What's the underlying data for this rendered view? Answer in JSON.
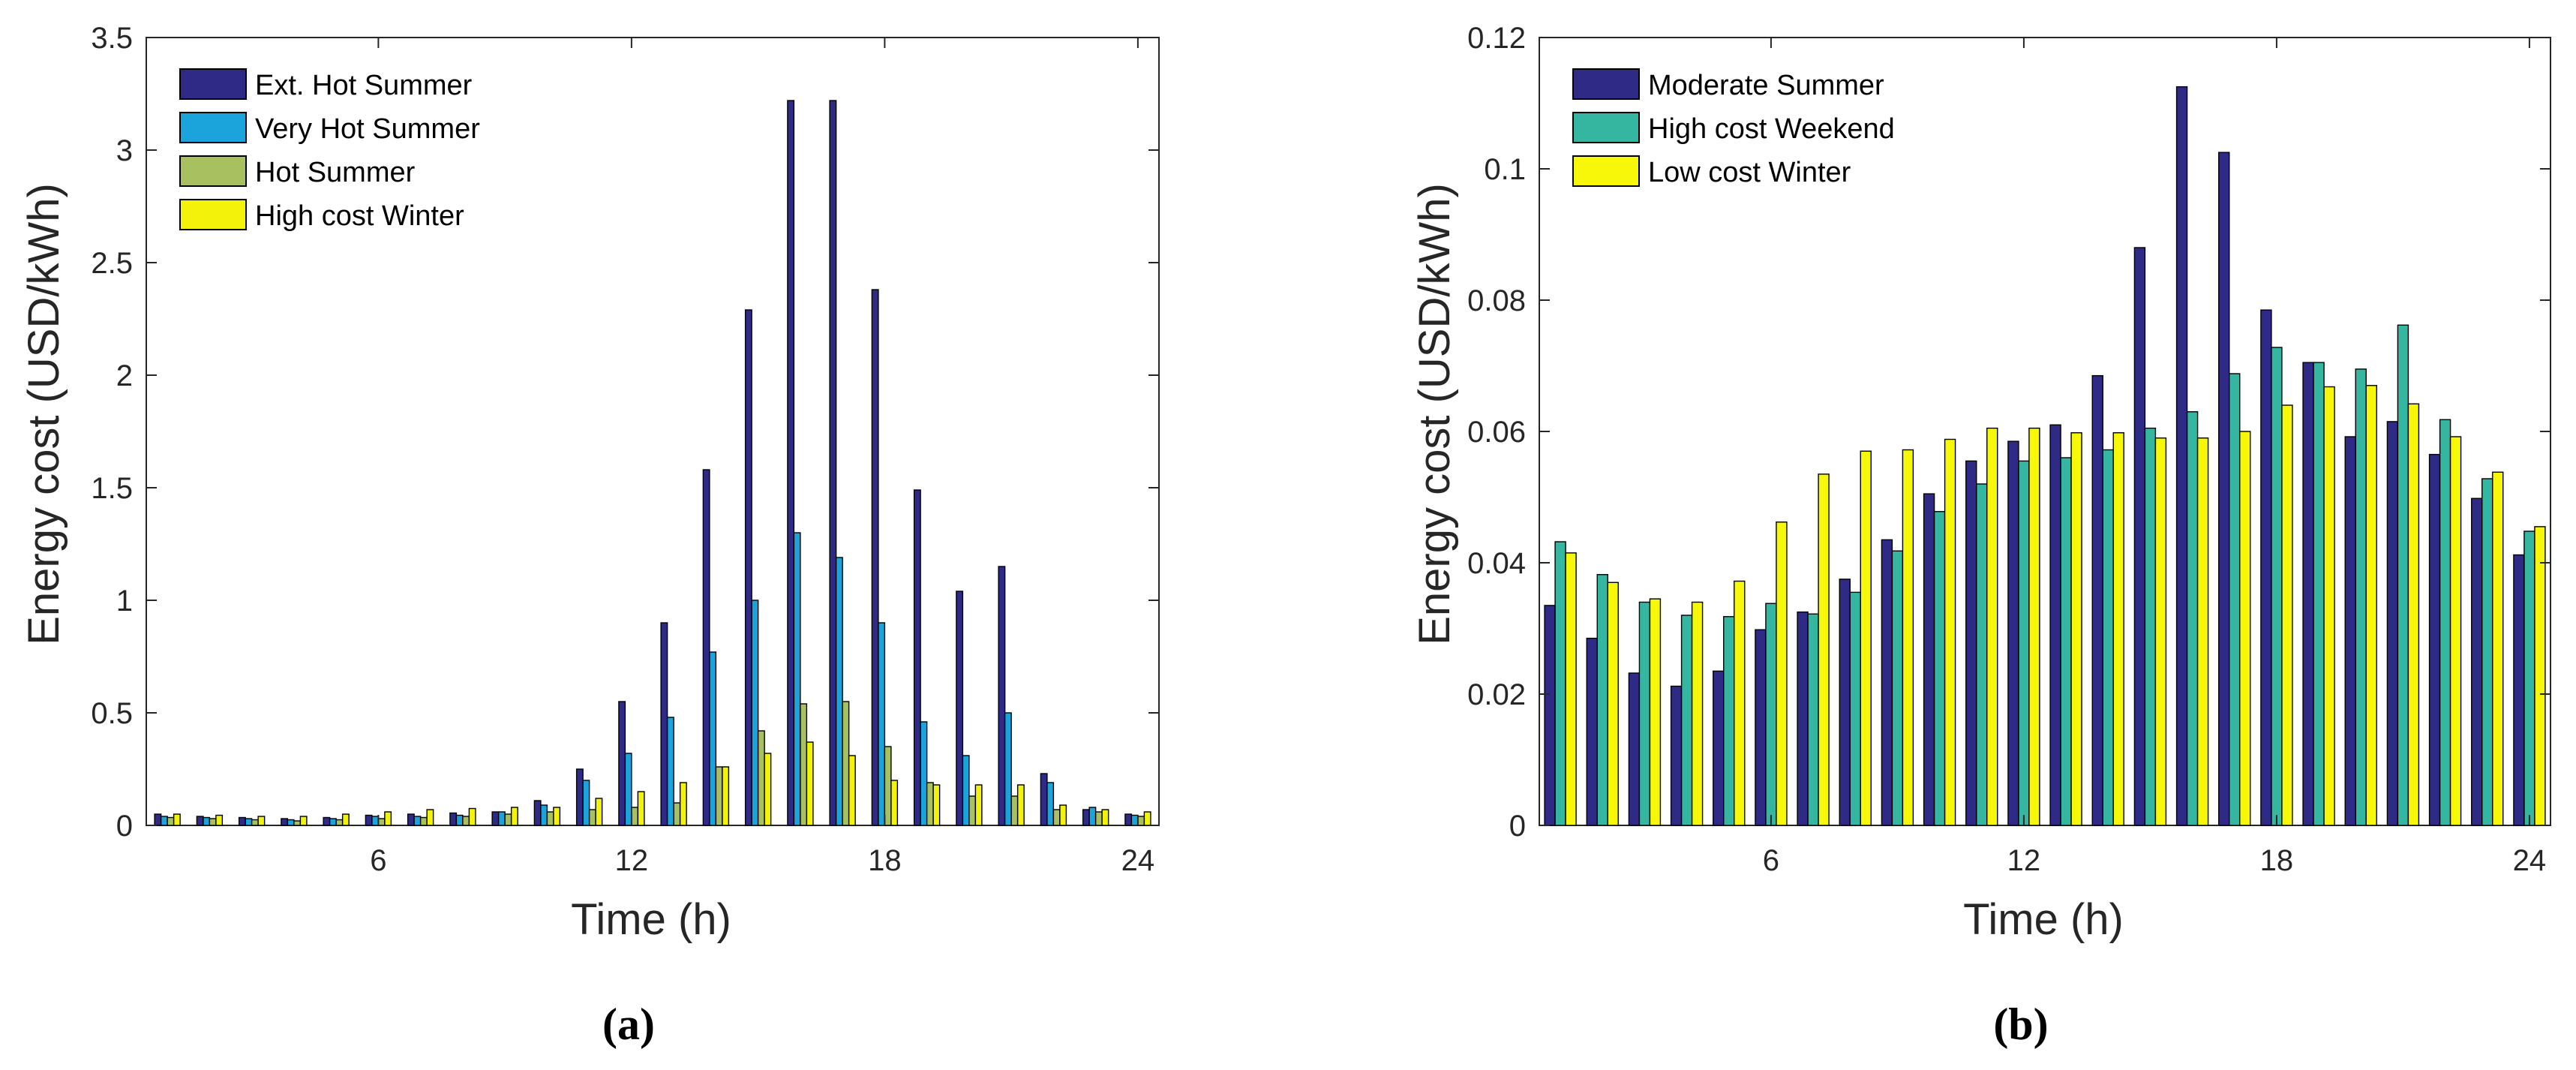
{
  "chart_data": [
    {
      "type": "bar",
      "caption": "(a)",
      "title": "",
      "xlabel": "Time (h)",
      "ylabel": "Energy cost (USD/kWh)",
      "ylim": [
        0,
        3.5
      ],
      "yticks": [
        "0",
        "0.5",
        "1",
        "1.5",
        "2",
        "2.5",
        "3",
        "3.5"
      ],
      "ytick_values": [
        0,
        0.5,
        1,
        1.5,
        2,
        2.5,
        3,
        3.5
      ],
      "xlim": [
        0.5,
        24.5
      ],
      "xticks": [
        "6",
        "12",
        "18",
        "24"
      ],
      "xtick_values": [
        6,
        12,
        18,
        24
      ],
      "legend_position": "top-left",
      "categories": [
        1,
        2,
        3,
        4,
        5,
        6,
        7,
        8,
        9,
        10,
        11,
        12,
        13,
        14,
        15,
        16,
        17,
        18,
        19,
        20,
        21,
        22,
        23,
        24
      ],
      "series": [
        {
          "name": "Ext. Hot Summer",
          "color": "#2e2a86",
          "values": [
            0.05,
            0.04,
            0.035,
            0.03,
            0.035,
            0.045,
            0.05,
            0.055,
            0.06,
            0.11,
            0.25,
            0.55,
            0.9,
            1.58,
            2.29,
            3.22,
            3.22,
            2.38,
            1.49,
            1.04,
            1.15,
            0.23,
            0.07,
            0.05
          ]
        },
        {
          "name": "Very Hot Summer",
          "color": "#1ba3db",
          "values": [
            0.04,
            0.035,
            0.03,
            0.025,
            0.03,
            0.04,
            0.04,
            0.045,
            0.06,
            0.09,
            0.2,
            0.32,
            0.48,
            0.77,
            1.0,
            1.3,
            1.19,
            0.9,
            0.46,
            0.31,
            0.5,
            0.19,
            0.08,
            0.045
          ]
        },
        {
          "name": "Hot Summer",
          "color": "#a8c060",
          "values": [
            0.035,
            0.03,
            0.025,
            0.02,
            0.025,
            0.03,
            0.035,
            0.04,
            0.05,
            0.06,
            0.07,
            0.08,
            0.1,
            0.26,
            0.42,
            0.54,
            0.55,
            0.35,
            0.19,
            0.13,
            0.13,
            0.07,
            0.06,
            0.04
          ]
        },
        {
          "name": "High cost Winter",
          "color": "#f2f20a",
          "values": [
            0.05,
            0.045,
            0.04,
            0.04,
            0.05,
            0.06,
            0.07,
            0.075,
            0.08,
            0.08,
            0.12,
            0.15,
            0.19,
            0.26,
            0.32,
            0.37,
            0.31,
            0.2,
            0.18,
            0.18,
            0.18,
            0.09,
            0.07,
            0.06
          ]
        }
      ]
    },
    {
      "type": "bar",
      "caption": "(b)",
      "title": "",
      "xlabel": "Time (h)",
      "ylabel": "Energy cost (USD/kWh)",
      "ylim": [
        0,
        0.12
      ],
      "yticks": [
        "0",
        "0.02",
        "0.04",
        "0.06",
        "0.08",
        "0.1",
        "0.12"
      ],
      "ytick_values": [
        0,
        0.02,
        0.04,
        0.06,
        0.08,
        0.1,
        0.12
      ],
      "xlim": [
        0.5,
        24.5
      ],
      "xticks": [
        "6",
        "12",
        "18",
        "24"
      ],
      "xtick_values": [
        6,
        12,
        18,
        24
      ],
      "legend_position": "top-left",
      "categories": [
        1,
        2,
        3,
        4,
        5,
        6,
        7,
        8,
        9,
        10,
        11,
        12,
        13,
        14,
        15,
        16,
        17,
        18,
        19,
        20,
        21,
        22,
        23,
        24
      ],
      "series": [
        {
          "name": "Moderate Summer",
          "color": "#2e2a86",
          "values": [
            0.0335,
            0.0285,
            0.0232,
            0.0212,
            0.0235,
            0.0298,
            0.0325,
            0.0375,
            0.0435,
            0.0505,
            0.0555,
            0.0585,
            0.061,
            0.0685,
            0.088,
            0.1125,
            0.1025,
            0.0785,
            0.0705,
            0.0592,
            0.0615,
            0.0565,
            0.0498,
            0.0412
          ]
        },
        {
          "name": "High cost Weekend",
          "color": "#35b6a0",
          "values": [
            0.0432,
            0.0382,
            0.034,
            0.032,
            0.0318,
            0.0338,
            0.0322,
            0.0355,
            0.0418,
            0.0478,
            0.052,
            0.0555,
            0.056,
            0.0572,
            0.0605,
            0.063,
            0.0688,
            0.0728,
            0.0705,
            0.0695,
            0.0762,
            0.0618,
            0.0528,
            0.0448
          ]
        },
        {
          "name": "Low cost Winter",
          "color": "#f7f709",
          "values": [
            0.0415,
            0.037,
            0.0345,
            0.034,
            0.0372,
            0.0462,
            0.0535,
            0.057,
            0.0572,
            0.0588,
            0.0605,
            0.0605,
            0.0598,
            0.0598,
            0.059,
            0.059,
            0.06,
            0.064,
            0.0668,
            0.067,
            0.0642,
            0.0592,
            0.0538,
            0.0455
          ]
        }
      ]
    }
  ]
}
